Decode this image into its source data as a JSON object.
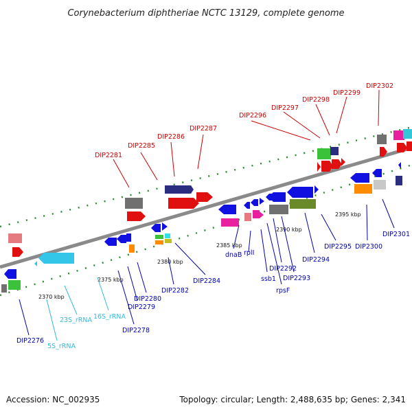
{
  "title": "Corynebacterium diphtheriae NCTC 13129, complete genome",
  "footer": {
    "accession": "Accession: NC_002935",
    "topology": "Topology: circular; Length: 2,488,635 bp; Genes: 2,341"
  },
  "colors": {
    "backbone": "#8a8a8a",
    "tick_dots": "#2e8b2e",
    "forward_label": "#cc0000",
    "reverse_label": "#0000b0",
    "rna_label": "#33bbdd"
  },
  "ticks": [
    "2370 kbp",
    "2375 kbp",
    "2380 kbp",
    "2385 kbp",
    "2390 kbp",
    "2395 kbp"
  ],
  "labels_forward": [
    "DIP2281",
    "DIP2285",
    "DIP2286",
    "DIP2287",
    "DIP2296",
    "DIP2297",
    "DIP2298",
    "DIP2299",
    "DIP2302"
  ],
  "labels_reverse": [
    "DIP2276",
    "DIP2278",
    "DIP2279",
    "DIP2280",
    "DIP2282",
    "DIP2284",
    "dnaB",
    "rplI",
    "ssb1",
    "rpsF",
    "DIP2292",
    "DIP2293",
    "DIP2294",
    "DIP2295",
    "DIP2300",
    "DIP2301"
  ],
  "labels_rna": [
    "5S_rRNA",
    "23S_rRNA",
    "16S_rRNA"
  ]
}
